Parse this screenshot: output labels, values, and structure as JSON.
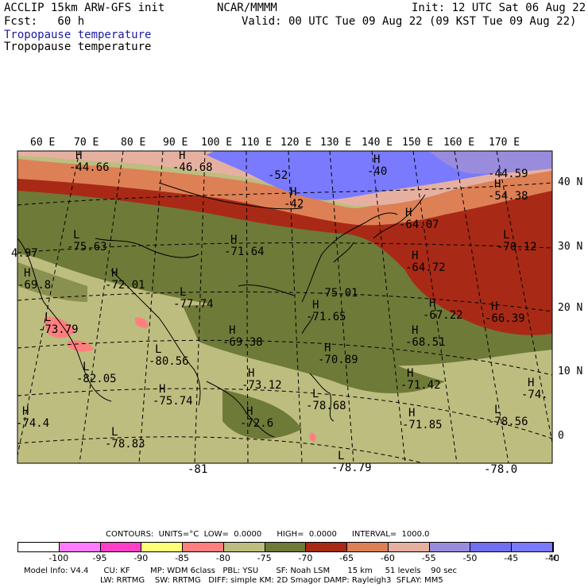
{
  "header": {
    "model": "ACCLIP 15km ARW-GFS init",
    "org": "NCAR/MMMM",
    "init": "Init: 12 UTC Sat 06 Aug 22",
    "fcst": "Fcst:   60 h",
    "valid": "Valid: 00 UTC Tue 09 Aug 22 (09 KST Tue 09 Aug 22)",
    "field1": "Tropopause temperature",
    "field2": "Tropopause temperature"
  },
  "lon_labels": [
    "60 E",
    "70 E",
    "80 E",
    "90 E",
    "100 E",
    "110 E",
    "120 E",
    "130 E",
    "140 E",
    "150 E",
    "160 E",
    "170 E"
  ],
  "lat_labels": [
    "40 N",
    "30 N",
    "20 N",
    "10 N",
    "0"
  ],
  "map_labels": [
    {
      "mark": "H",
      "value": "-44.66"
    },
    {
      "mark": "H",
      "value": "-46.68"
    },
    {
      "mark": "",
      "value": "-52"
    },
    {
      "mark": "H",
      "value": "-40"
    },
    {
      "mark": "",
      "value": "-44.59"
    },
    {
      "mark": "H",
      "value": "-42"
    },
    {
      "mark": "H",
      "value": "-54.38"
    },
    {
      "mark": "H",
      "value": "-64.07"
    },
    {
      "mark": "L",
      "value": "-70.12"
    },
    {
      "mark": "",
      "value": "4.97"
    },
    {
      "mark": "L",
      "value": "-75.63"
    },
    {
      "mark": "H",
      "value": "-71.64"
    },
    {
      "mark": "H",
      "value": "-64.72"
    },
    {
      "mark": "",
      "value": "-75.01"
    },
    {
      "mark": "H",
      "value": "-72.01"
    },
    {
      "mark": "L",
      "value": "-77.74"
    },
    {
      "mark": "H",
      "value": "-69.8"
    },
    {
      "mark": "H",
      "value": "-67.22"
    },
    {
      "mark": "H",
      "value": "-71.65"
    },
    {
      "mark": "H",
      "value": "-66.39"
    },
    {
      "mark": "L",
      "value": "-73.79"
    },
    {
      "mark": "H",
      "value": "-69.38"
    },
    {
      "mark": "H",
      "value": "-68.51"
    },
    {
      "mark": "L",
      "value": "-80.56"
    },
    {
      "mark": "H",
      "value": "-70.89"
    },
    {
      "mark": "L",
      "value": "-82.05"
    },
    {
      "mark": "H",
      "value": "-73.12"
    },
    {
      "mark": "H",
      "value": "-71.42"
    },
    {
      "mark": "H",
      "value": "-74."
    },
    {
      "mark": "H",
      "value": "-75.74"
    },
    {
      "mark": "L",
      "value": "-78.68"
    },
    {
      "mark": "L",
      "value": "-78.56"
    },
    {
      "mark": "H",
      "value": "-74.4"
    },
    {
      "mark": "H",
      "value": "-72.6"
    },
    {
      "mark": "H",
      "value": "-71.85"
    },
    {
      "mark": "L",
      "value": "-78.83"
    },
    {
      "mark": "",
      "value": "-81"
    },
    {
      "mark": "L",
      "value": "-78.79"
    },
    {
      "mark": "",
      "value": "-78.0"
    }
  ],
  "contours": {
    "line": "CONTOURS:  UNITS=°C  LOW=  0.0000      HIGH=  0.0000      INTERVAL=  1000.0"
  },
  "colorbar": {
    "colors": [
      "#ffffff",
      "#ff7bff",
      "#ff3fc8",
      "#ffff7a",
      "#ff7f7f",
      "#bdbd80",
      "#6e7a38",
      "#a82a16",
      "#dd8055",
      "#e6b0a0",
      "#9a8cdc",
      "#6f6ff0",
      "#7a7aff"
    ],
    "labels": [
      "-100",
      "-95",
      "-90",
      "-85",
      "-80",
      "-75",
      "-70",
      "-65",
      "-60",
      "-55",
      "-50",
      "-45",
      "-40"
    ],
    "unit": "°C"
  },
  "footer": {
    "line1": "Model Info: V4.4      CU: KF        MP: WDM 6class   PBL: YSU       SF: Noah LSM       15 km     51 levels    90 sec",
    "line2": "LW: RRTMG    SW: RRTMG   DIFF: simple KM: 2D Smagor DAMP: Rayleigh3  SFLAY: MM5"
  }
}
